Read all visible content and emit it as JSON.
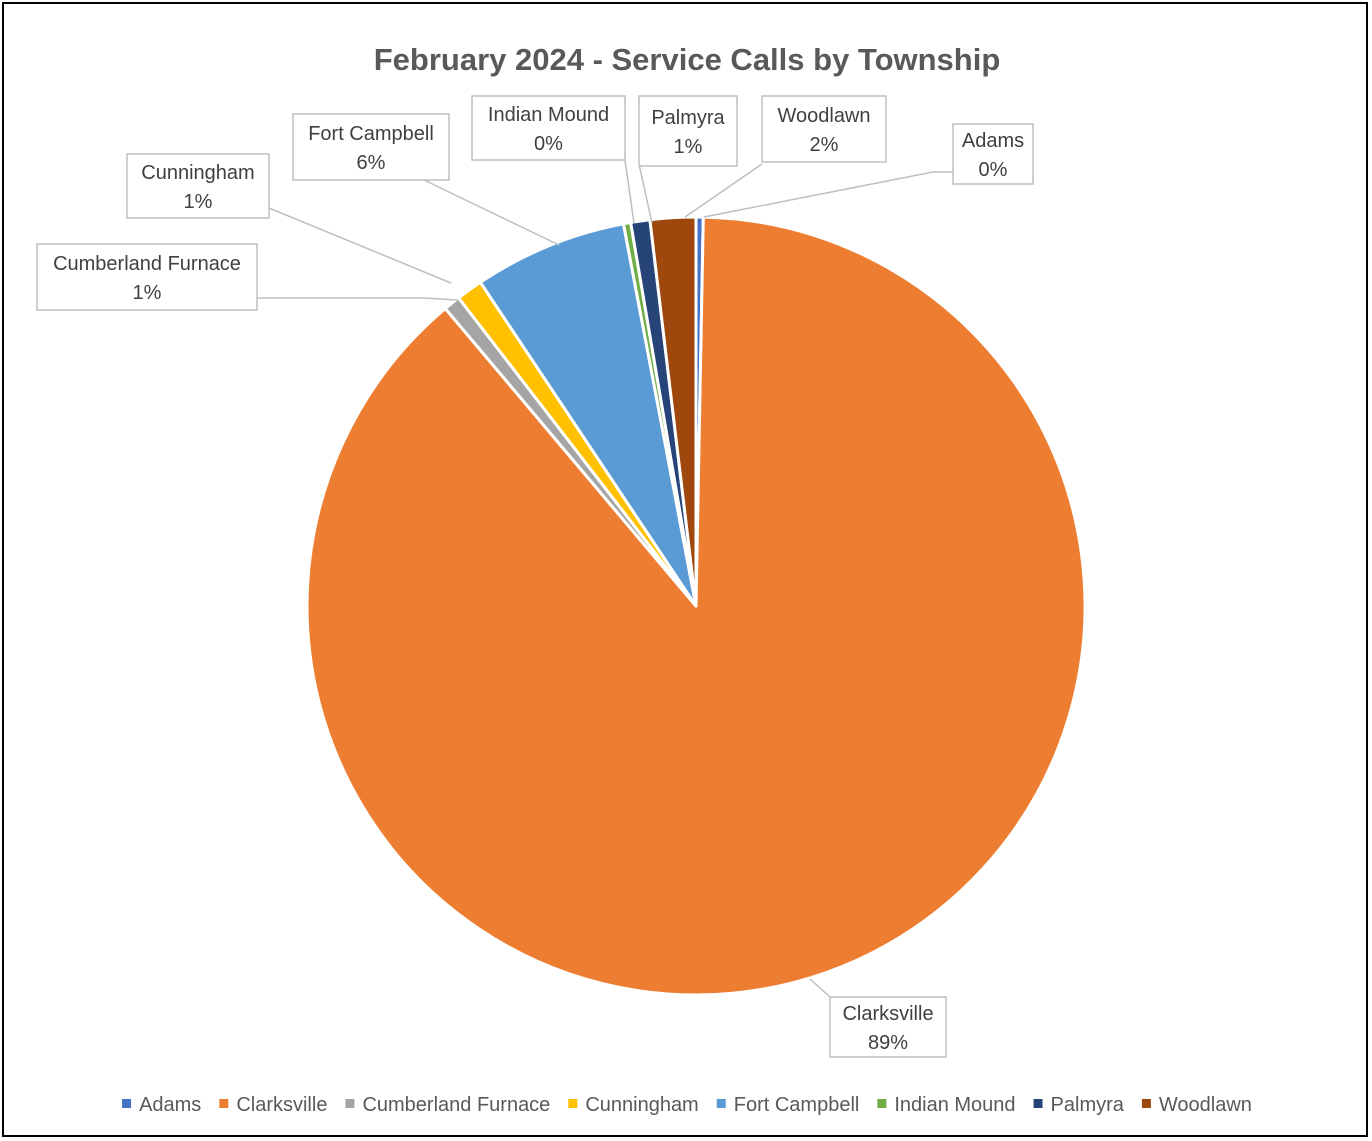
{
  "chart_data": {
    "type": "pie",
    "title": "February 2024 - Service Calls by Township",
    "categories": [
      "Adams",
      "Clarksville",
      "Cumberland Furnace",
      "Cunningham",
      "Fort Campbell",
      "Indian Mound",
      "Palmyra",
      "Woodlawn"
    ],
    "values": [
      0.3,
      89.0,
      0.7,
      1.1,
      6.4,
      0.3,
      0.8,
      1.9
    ],
    "data_labels": [
      "0%",
      "89%",
      "1%",
      "1%",
      "6%",
      "0%",
      "1%",
      "2%"
    ],
    "colors": [
      "#4472C4",
      "#ED7D31",
      "#A5A5A5",
      "#FFC000",
      "#5B9BD5",
      "#70AD47",
      "#264478",
      "#9E480E"
    ],
    "legend_position": "bottom",
    "start_angle_deg": 0,
    "direction": "clockwise"
  }
}
